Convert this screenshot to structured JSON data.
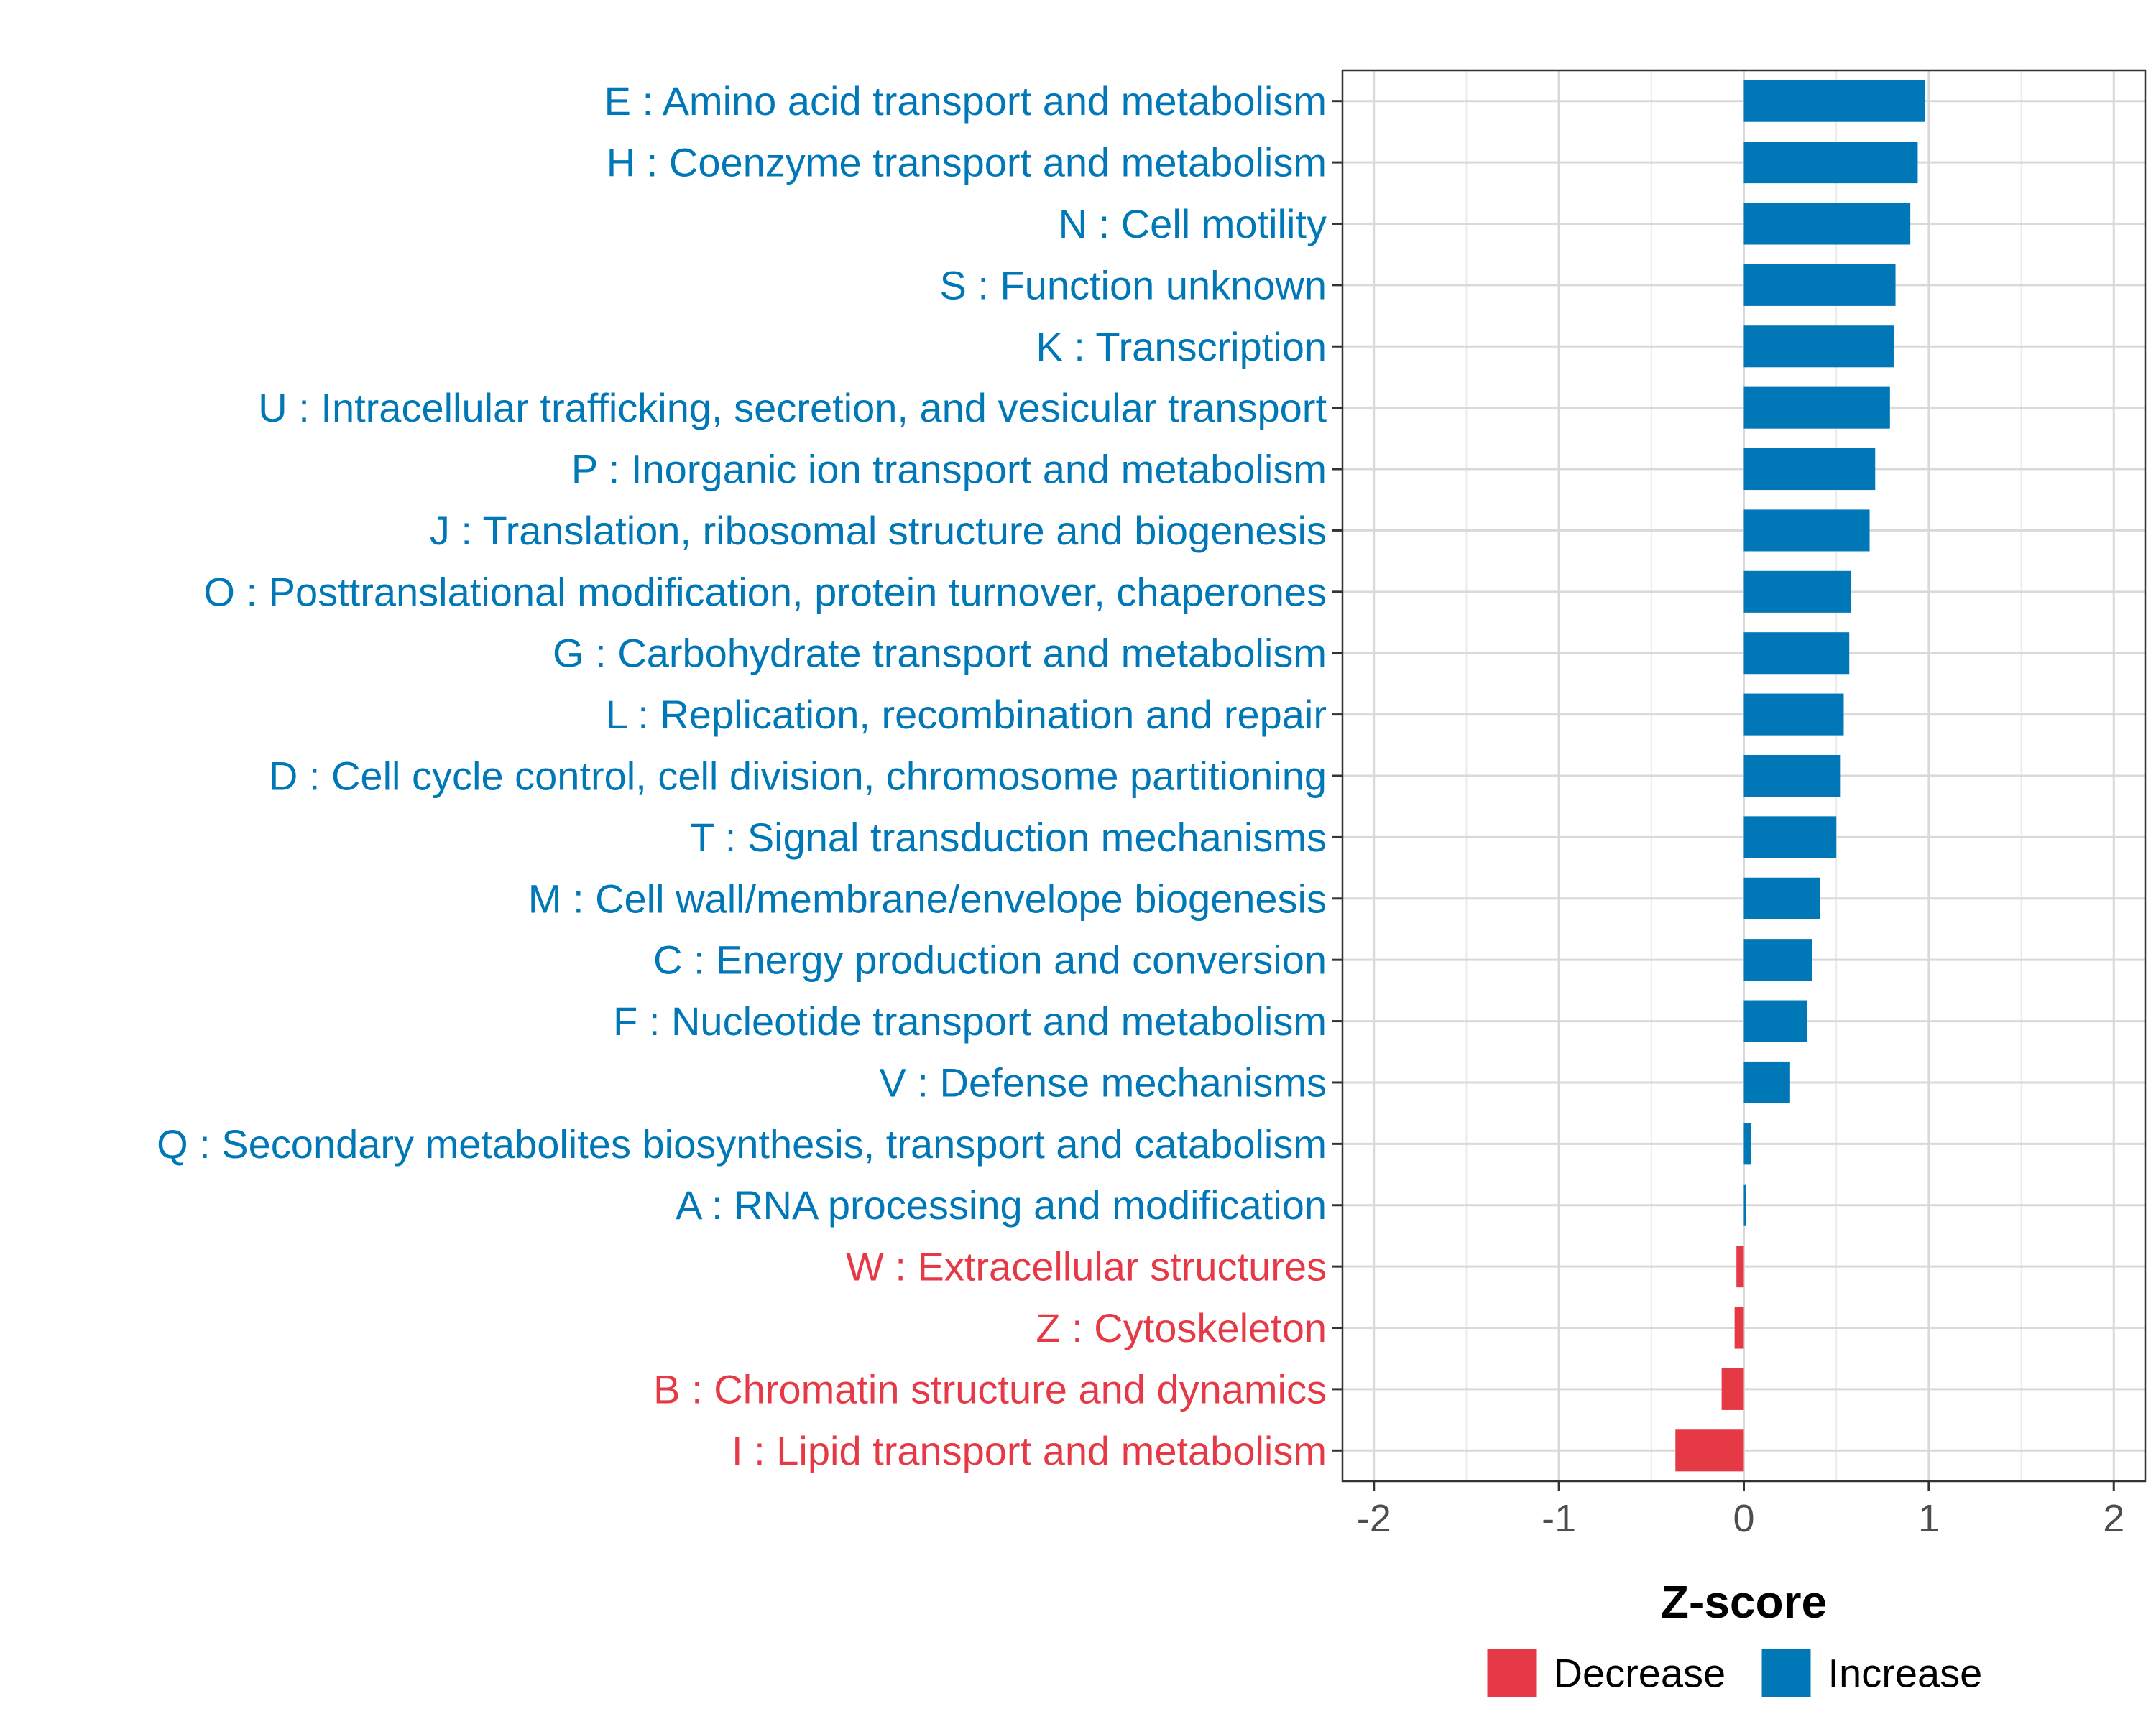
{
  "chart_data": {
    "type": "bar",
    "orientation": "horizontal",
    "title": "",
    "xlabel": "Z-score",
    "ylabel": "",
    "xlim": [
      -2.17,
      2.17
    ],
    "xticks": [
      -2,
      -1,
      0,
      1,
      2
    ],
    "xtick_labels": [
      "-2",
      "-1",
      "0",
      "1",
      "2"
    ],
    "grid": true,
    "legend_position": "bottom",
    "colors": {
      "Increase": "#0077b6",
      "Decrease": "#e63946"
    },
    "legend": [
      {
        "name": "Decrease",
        "color": "#e63946"
      },
      {
        "name": "Increase",
        "color": "#0077b6"
      }
    ],
    "categories": [
      "E : Amino acid transport and metabolism",
      "H : Coenzyme transport and metabolism",
      "N : Cell motility",
      "S : Function unknown",
      "K : Transcription",
      "U : Intracellular trafficking, secretion, and vesicular transport",
      "P : Inorganic ion transport and metabolism",
      "J : Translation, ribosomal structure and biogenesis",
      "O : Posttranslational modification, protein turnover, chaperones",
      "G : Carbohydrate transport and metabolism",
      "L : Replication, recombination and repair",
      "D : Cell cycle control, cell division, chromosome partitioning",
      "T : Signal transduction mechanisms",
      "M : Cell wall/membrane/envelope biogenesis",
      "C : Energy production and conversion",
      "F : Nucleotide transport and metabolism",
      "V : Defense mechanisms",
      "Q : Secondary metabolites biosynthesis, transport and catabolism",
      "A : RNA processing and modification",
      "W : Extracellular structures",
      "Z : Cytoskeleton",
      "B : Chromatin structure and dynamics",
      "I : Lipid transport and metabolism"
    ],
    "values": [
      0.98,
      0.94,
      0.9,
      0.82,
      0.81,
      0.79,
      0.71,
      0.68,
      0.58,
      0.57,
      0.54,
      0.52,
      0.5,
      0.41,
      0.37,
      0.34,
      0.25,
      0.04,
      0.01,
      -0.04,
      -0.05,
      -0.12,
      -0.37
    ],
    "groups": [
      "Increase",
      "Increase",
      "Increase",
      "Increase",
      "Increase",
      "Increase",
      "Increase",
      "Increase",
      "Increase",
      "Increase",
      "Increase",
      "Increase",
      "Increase",
      "Increase",
      "Increase",
      "Increase",
      "Increase",
      "Increase",
      "Increase",
      "Decrease",
      "Decrease",
      "Decrease",
      "Decrease"
    ]
  }
}
